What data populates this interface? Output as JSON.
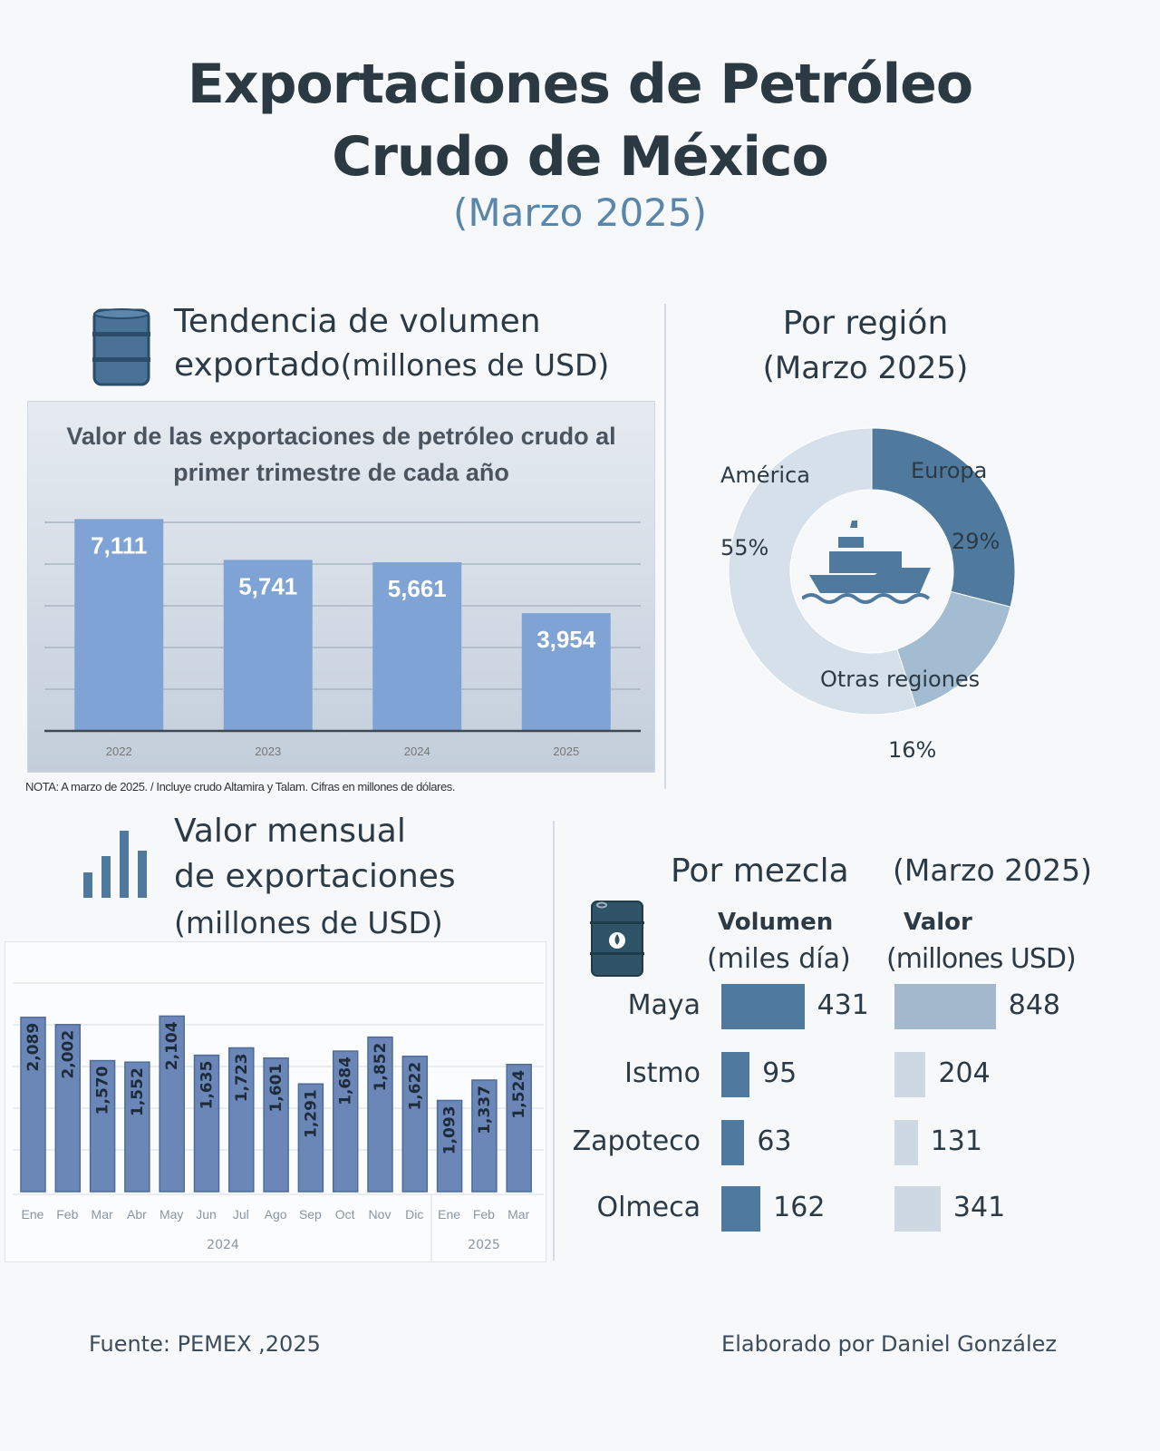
{
  "header": {
    "title_line1": "Exportaciones de Petróleo",
    "title_line2": "Crudo de México",
    "subtitle": "(Marzo 2025)"
  },
  "section_trend": {
    "heading_line1": "Tendencia de volumen",
    "heading_line2": "exportado",
    "heading_unit": "(millones de USD)",
    "icon": "oil-barrel-icon",
    "note": "NOTA: A marzo de 2025. / Incluye crudo Altamira y Talam. Cifras en millones de dólares."
  },
  "section_region": {
    "heading_line1": "Por región",
    "heading_line2": "(Marzo 2025)",
    "icon": "ship-icon"
  },
  "section_monthly": {
    "heading_line1": "Valor mensual",
    "heading_line2": "de exportaciones",
    "heading_unit": "(millones de USD)",
    "icon": "bar-chart-icon"
  },
  "section_mix": {
    "heading": "Por mezcla",
    "heading_date": "(Marzo 2025)",
    "col1_line1": "Volumen",
    "col1_line2": "(miles día)",
    "col2_line1": "Valor",
    "col2_line2": "(millones USD)",
    "icon": "oil-drum-icon"
  },
  "footer": {
    "source": "Fuente: PEMEX ,2025",
    "author": "Elaborado por Daniel González"
  },
  "colors": {
    "bar_annual": "#7ea3d4",
    "bar_monthly": "#6b87b8",
    "europa": "#4f7a9e",
    "otras": "#a4bcd2",
    "america": "#d6e0ea",
    "vol": "#4f7a9e",
    "val_top": "#a3b8cd",
    "val": "#cdd8e3"
  },
  "chart_data": [
    {
      "type": "bar",
      "title": "Valor de las exportaciones de petróleo crudo al primer trimestre de cada año",
      "categories": [
        "2022",
        "2023",
        "2024",
        "2025"
      ],
      "values": [
        7111,
        5741,
        5661,
        3954
      ],
      "labels": [
        "7,111",
        "5,741",
        "5,661",
        "3,954"
      ],
      "ylim": [
        0,
        7700
      ],
      "grid": true,
      "xlabel": "",
      "ylabel": ""
    },
    {
      "type": "pie",
      "title": "Por región (Marzo 2025)",
      "categories": [
        "Europa",
        "Otras regiones",
        "América"
      ],
      "values": [
        29,
        16,
        55
      ],
      "labels": [
        "29%",
        "16%",
        "55%"
      ],
      "donut": true
    },
    {
      "type": "bar",
      "title": "Valor mensual de exportaciones (millones de USD)",
      "categories": [
        "Ene",
        "Feb",
        "Mar",
        "Abr",
        "May",
        "Jun",
        "Jul",
        "Ago",
        "Sep",
        "Oct",
        "Nov",
        "Dic",
        "Ene",
        "Feb",
        "Mar"
      ],
      "groups": [
        {
          "label": "2024",
          "count": 12
        },
        {
          "label": "2025",
          "count": 3
        }
      ],
      "values": [
        2089,
        2002,
        1570,
        1552,
        2104,
        1635,
        1723,
        1601,
        1291,
        1684,
        1852,
        1622,
        1093,
        1337,
        1524
      ],
      "labels": [
        "2,089",
        "2,002",
        "1,570",
        "1,552",
        "2,104",
        "1,635",
        "1,723",
        "1,601",
        "1,291",
        "1,684",
        "1,852",
        "1,622",
        "1,093",
        "1,337",
        "1,524"
      ],
      "ylim": [
        0,
        2500
      ],
      "grid": true
    },
    {
      "type": "bar",
      "title": "Por mezcla (Marzo 2025)",
      "categories": [
        "Maya",
        "Istmo",
        "Zapoteco",
        "Olmeca"
      ],
      "series": [
        {
          "name": "Volumen (miles día)",
          "values": [
            431,
            95,
            63,
            162
          ]
        },
        {
          "name": "Valor (millones USD)",
          "values": [
            848,
            204,
            131,
            341
          ]
        }
      ]
    }
  ]
}
